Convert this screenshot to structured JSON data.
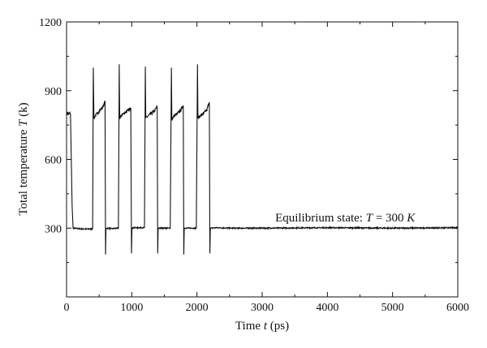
{
  "chart_data": {
    "type": "line",
    "title": "",
    "xlabel": {
      "prefix": "Time ",
      "var": "t",
      "suffix": " (ps)"
    },
    "ylabel": {
      "prefix": "Total temperature ",
      "var": "T",
      "suffix": " (k)"
    },
    "xlim": [
      0,
      6000
    ],
    "ylim": [
      0,
      1200
    ],
    "x_ticks": [
      "0",
      "1000",
      "2000",
      "3000",
      "4000",
      "5000",
      "6000"
    ],
    "y_ticks": [
      "300",
      "600",
      "900",
      "1200"
    ],
    "grid": false,
    "annotation": {
      "prefix": "Equilibrium state: ",
      "var": "T",
      "eq": " = 300 ",
      "unit": "K",
      "x": 3200,
      "y": 330
    },
    "series": [
      {
        "color": "#111111",
        "points": [
          [
            0,
            800
          ],
          [
            60,
            800
          ],
          [
            70,
            640
          ],
          [
            85,
            400
          ],
          [
            100,
            300
          ],
          [
            110,
            300
          ],
          [
            200,
            297
          ],
          [
            300,
            296
          ],
          [
            390,
            297
          ],
          [
            400,
            297
          ],
          [
            410,
            1000
          ],
          [
            420,
            780
          ],
          [
            440,
            790
          ],
          [
            470,
            800
          ],
          [
            500,
            810
          ],
          [
            530,
            820
          ],
          [
            560,
            830
          ],
          [
            580,
            845
          ],
          [
            590,
            855
          ],
          [
            598,
            185
          ],
          [
            605,
            300
          ],
          [
            620,
            300
          ],
          [
            700,
            298
          ],
          [
            795,
            300
          ],
          [
            808,
            1015
          ],
          [
            815,
            780
          ],
          [
            850,
            795
          ],
          [
            900,
            805
          ],
          [
            950,
            815
          ],
          [
            985,
            825
          ],
          [
            996,
            190
          ],
          [
            1003,
            300
          ],
          [
            1050,
            302
          ],
          [
            1150,
            302
          ],
          [
            1195,
            302
          ],
          [
            1208,
            1005
          ],
          [
            1215,
            780
          ],
          [
            1250,
            790
          ],
          [
            1300,
            800
          ],
          [
            1350,
            812
          ],
          [
            1390,
            830
          ],
          [
            1398,
            190
          ],
          [
            1405,
            300
          ],
          [
            1500,
            300
          ],
          [
            1590,
            300
          ],
          [
            1608,
            1000
          ],
          [
            1615,
            775
          ],
          [
            1650,
            790
          ],
          [
            1700,
            800
          ],
          [
            1750,
            815
          ],
          [
            1790,
            835
          ],
          [
            1798,
            185
          ],
          [
            1805,
            300
          ],
          [
            1900,
            300
          ],
          [
            1990,
            300
          ],
          [
            2008,
            1015
          ],
          [
            2015,
            780
          ],
          [
            2050,
            790
          ],
          [
            2100,
            800
          ],
          [
            2150,
            815
          ],
          [
            2190,
            850
          ],
          [
            2198,
            190
          ],
          [
            2205,
            300
          ],
          [
            2300,
            302
          ],
          [
            2500,
            300
          ],
          [
            3000,
            300
          ],
          [
            4000,
            302
          ],
          [
            5000,
            300
          ],
          [
            6000,
            302
          ]
        ]
      }
    ]
  }
}
